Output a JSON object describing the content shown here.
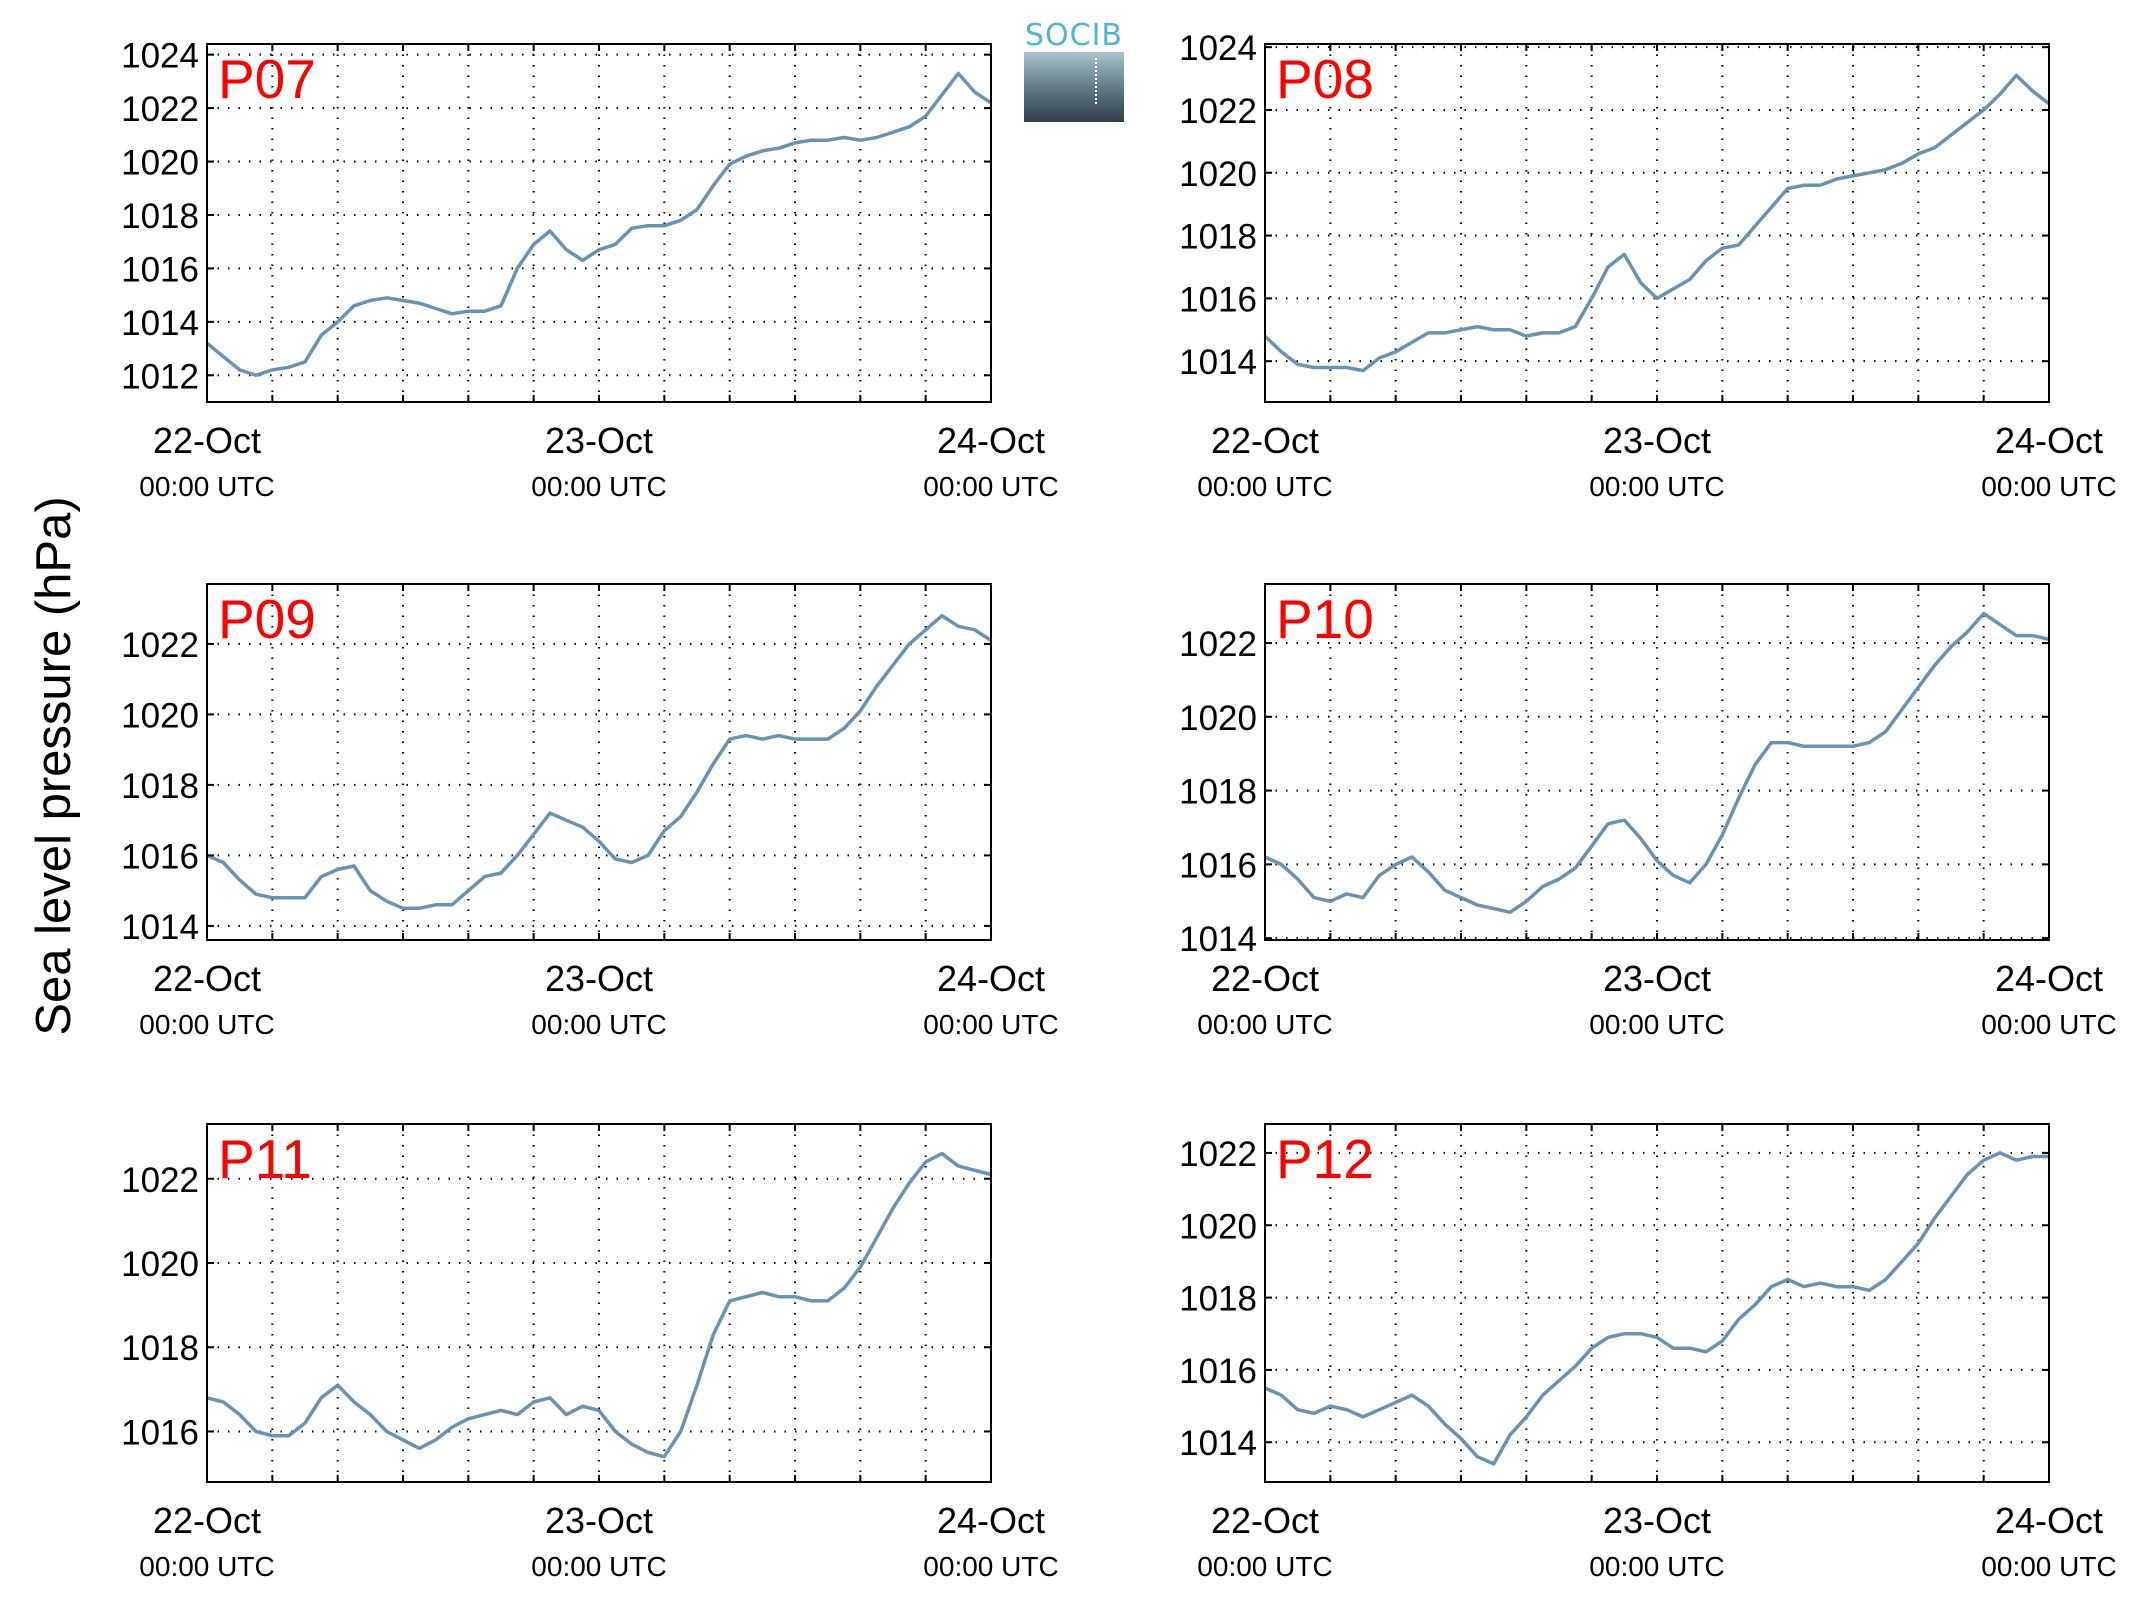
{
  "figure": {
    "ylabel": "Sea level pressure (hPa)",
    "logo_text": "SOCIB",
    "line_color": "#6893b5",
    "label_color": "#ff0000"
  },
  "chart_data": [
    {
      "type": "line",
      "title": "P07",
      "x_tick_labels": [
        [
          "22-Oct",
          "00:00 UTC"
        ],
        [
          "23-Oct",
          "00:00 UTC"
        ],
        [
          "24-Oct",
          "00:00 UTC"
        ]
      ],
      "xlim": [
        0,
        48
      ],
      "ylim": [
        1011,
        1024.4
      ],
      "yticks": [
        1012,
        1014,
        1016,
        1018,
        1020,
        1022,
        1024
      ],
      "grid": true,
      "series": [
        {
          "x": [
            0,
            1,
            2,
            3,
            4,
            5,
            6,
            7,
            8,
            9,
            10,
            11,
            12,
            13,
            14,
            15,
            16,
            17,
            18,
            19,
            20,
            21,
            22,
            23,
            24,
            25,
            26,
            27,
            28,
            29,
            30,
            31,
            32,
            33,
            34,
            35,
            36,
            37,
            38,
            39,
            40,
            41,
            42,
            43,
            44,
            45,
            46,
            47,
            48
          ],
          "y": [
            1013.2,
            1012.7,
            1012.2,
            1012.0,
            1012.2,
            1012.3,
            1012.5,
            1013.5,
            1014.0,
            1014.6,
            1014.8,
            1014.9,
            1014.8,
            1014.7,
            1014.5,
            1014.3,
            1014.4,
            1014.4,
            1014.6,
            1016.0,
            1016.9,
            1017.4,
            1016.7,
            1016.3,
            1016.7,
            1016.9,
            1017.5,
            1017.6,
            1017.6,
            1017.8,
            1018.2,
            1019.1,
            1019.9,
            1020.2,
            1020.4,
            1020.5,
            1020.7,
            1020.8,
            1020.8,
            1020.9,
            1020.8,
            1020.9,
            1021.1,
            1021.3,
            1021.7,
            1022.5,
            1023.3,
            1022.6,
            1022.2
          ]
        }
      ]
    },
    {
      "type": "line",
      "title": "P08",
      "x_tick_labels": [
        [
          "22-Oct",
          "00:00 UTC"
        ],
        [
          "23-Oct",
          "00:00 UTC"
        ],
        [
          "24-Oct",
          "00:00 UTC"
        ]
      ],
      "xlim": [
        0,
        48
      ],
      "ylim": [
        1012.7,
        1024.1
      ],
      "yticks": [
        1014,
        1016,
        1018,
        1020,
        1022,
        1024
      ],
      "grid": true,
      "series": [
        {
          "x": [
            0,
            1,
            2,
            3,
            4,
            5,
            6,
            7,
            8,
            9,
            10,
            11,
            12,
            13,
            14,
            15,
            16,
            17,
            18,
            19,
            20,
            21,
            22,
            23,
            24,
            25,
            26,
            27,
            28,
            29,
            30,
            31,
            32,
            33,
            34,
            35,
            36,
            37,
            38,
            39,
            40,
            41,
            42,
            43,
            44,
            45,
            46,
            47,
            48
          ],
          "y": [
            1014.8,
            1014.3,
            1013.9,
            1013.8,
            1013.8,
            1013.8,
            1013.7,
            1014.1,
            1014.3,
            1014.6,
            1014.9,
            1014.9,
            1015.0,
            1015.1,
            1015.0,
            1015.0,
            1014.8,
            1014.9,
            1014.9,
            1015.1,
            1016.0,
            1017.0,
            1017.4,
            1016.5,
            1016.0,
            1016.3,
            1016.6,
            1017.2,
            1017.6,
            1017.7,
            1018.3,
            1018.9,
            1019.5,
            1019.6,
            1019.6,
            1019.8,
            1019.9,
            1020.0,
            1020.1,
            1020.3,
            1020.6,
            1020.8,
            1021.2,
            1021.6,
            1022.0,
            1022.5,
            1023.1,
            1022.6,
            1022.2
          ]
        }
      ]
    },
    {
      "type": "line",
      "title": "P09",
      "x_tick_labels": [
        [
          "22-Oct",
          "00:00 UTC"
        ],
        [
          "23-Oct",
          "00:00 UTC"
        ],
        [
          "24-Oct",
          "00:00 UTC"
        ]
      ],
      "xlim": [
        0,
        48
      ],
      "ylim": [
        1013.6,
        1023.7
      ],
      "yticks": [
        1014,
        1016,
        1018,
        1020,
        1022
      ],
      "grid": true,
      "series": [
        {
          "x": [
            0,
            1,
            2,
            3,
            4,
            5,
            6,
            7,
            8,
            9,
            10,
            11,
            12,
            13,
            14,
            15,
            16,
            17,
            18,
            19,
            20,
            21,
            22,
            23,
            24,
            25,
            26,
            27,
            28,
            29,
            30,
            31,
            32,
            33,
            34,
            35,
            36,
            37,
            38,
            39,
            40,
            41,
            42,
            43,
            44,
            45,
            46,
            47,
            48
          ],
          "y": [
            1016.0,
            1015.8,
            1015.3,
            1014.9,
            1014.8,
            1014.8,
            1014.8,
            1015.4,
            1015.6,
            1015.7,
            1015.0,
            1014.7,
            1014.5,
            1014.5,
            1014.6,
            1014.6,
            1015.0,
            1015.4,
            1015.5,
            1016.0,
            1016.6,
            1017.2,
            1017.0,
            1016.8,
            1016.4,
            1015.9,
            1015.8,
            1016.0,
            1016.7,
            1017.1,
            1017.8,
            1018.6,
            1019.3,
            1019.4,
            1019.3,
            1019.4,
            1019.3,
            1019.3,
            1019.3,
            1019.6,
            1020.1,
            1020.8,
            1021.4,
            1022.0,
            1022.4,
            1022.8,
            1022.5,
            1022.4,
            1022.1
          ]
        }
      ]
    },
    {
      "type": "line",
      "title": "P10",
      "x_tick_labels": [
        [
          "22-Oct",
          "00:00 UTC"
        ],
        [
          "23-Oct",
          "00:00 UTC"
        ],
        [
          "24-Oct",
          "00:00 UTC"
        ]
      ],
      "xlim": [
        0,
        48
      ],
      "ylim": [
        1013.95,
        1023.6
      ],
      "yticks": [
        1014,
        1016,
        1018,
        1020,
        1022
      ],
      "grid": true,
      "series": [
        {
          "x": [
            0,
            1,
            2,
            3,
            4,
            5,
            6,
            7,
            8,
            9,
            10,
            11,
            12,
            13,
            14,
            15,
            16,
            17,
            18,
            19,
            20,
            21,
            22,
            23,
            24,
            25,
            26,
            27,
            28,
            29,
            30,
            31,
            32,
            33,
            34,
            35,
            36,
            37,
            38,
            39,
            40,
            41,
            42,
            43,
            44,
            45,
            46,
            47,
            48
          ],
          "y": [
            1016.2,
            1016.0,
            1015.6,
            1015.1,
            1015.0,
            1015.2,
            1015.1,
            1015.7,
            1016.0,
            1016.2,
            1015.8,
            1015.3,
            1015.1,
            1014.9,
            1014.8,
            1014.7,
            1015.0,
            1015.4,
            1015.6,
            1015.9,
            1016.5,
            1017.1,
            1017.2,
            1016.7,
            1016.1,
            1015.7,
            1015.5,
            1016.0,
            1016.8,
            1017.8,
            1018.7,
            1019.3,
            1019.3,
            1019.2,
            1019.2,
            1019.2,
            1019.2,
            1019.3,
            1019.6,
            1020.2,
            1020.8,
            1021.4,
            1021.9,
            1022.3,
            1022.8,
            1022.5,
            1022.2,
            1022.2,
            1022.1
          ]
        }
      ]
    },
    {
      "type": "line",
      "title": "P11",
      "x_tick_labels": [
        [
          "22-Oct",
          "00:00 UTC"
        ],
        [
          "23-Oct",
          "00:00 UTC"
        ],
        [
          "24-Oct",
          "00:00 UTC"
        ]
      ],
      "xlim": [
        0,
        48
      ],
      "ylim": [
        1014.8,
        1023.3
      ],
      "yticks": [
        1016,
        1018,
        1020,
        1022
      ],
      "grid": true,
      "series": [
        {
          "x": [
            0,
            1,
            2,
            3,
            4,
            5,
            6,
            7,
            8,
            9,
            10,
            11,
            12,
            13,
            14,
            15,
            16,
            17,
            18,
            19,
            20,
            21,
            22,
            23,
            24,
            25,
            26,
            27,
            28,
            29,
            30,
            31,
            32,
            33,
            34,
            35,
            36,
            37,
            38,
            39,
            40,
            41,
            42,
            43,
            44,
            45,
            46,
            47,
            48
          ],
          "y": [
            1016.8,
            1016.7,
            1016.4,
            1016.0,
            1015.9,
            1015.9,
            1016.2,
            1016.8,
            1017.1,
            1016.7,
            1016.4,
            1016.0,
            1015.8,
            1015.6,
            1015.8,
            1016.1,
            1016.3,
            1016.4,
            1016.5,
            1016.4,
            1016.7,
            1016.8,
            1016.4,
            1016.6,
            1016.5,
            1016.0,
            1015.7,
            1015.5,
            1015.4,
            1016.0,
            1017.1,
            1018.3,
            1019.1,
            1019.2,
            1019.3,
            1019.2,
            1019.2,
            1019.1,
            1019.1,
            1019.4,
            1019.9,
            1020.6,
            1021.3,
            1021.9,
            1022.4,
            1022.6,
            1022.3,
            1022.2,
            1022.1
          ]
        }
      ]
    },
    {
      "type": "line",
      "title": "P12",
      "x_tick_labels": [
        [
          "22-Oct",
          "00:00 UTC"
        ],
        [
          "23-Oct",
          "00:00 UTC"
        ],
        [
          "24-Oct",
          "00:00 UTC"
        ]
      ],
      "xlim": [
        0,
        48
      ],
      "ylim": [
        1012.9,
        1022.8
      ],
      "yticks": [
        1014,
        1016,
        1018,
        1020,
        1022
      ],
      "grid": true,
      "series": [
        {
          "x": [
            0,
            1,
            2,
            3,
            4,
            5,
            6,
            7,
            8,
            9,
            10,
            11,
            12,
            13,
            14,
            15,
            16,
            17,
            18,
            19,
            20,
            21,
            22,
            23,
            24,
            25,
            26,
            27,
            28,
            29,
            30,
            31,
            32,
            33,
            34,
            35,
            36,
            37,
            38,
            39,
            40,
            41,
            42,
            43,
            44,
            45,
            46,
            47,
            48
          ],
          "y": [
            1015.5,
            1015.3,
            1014.9,
            1014.8,
            1015.0,
            1014.9,
            1014.7,
            1014.9,
            1015.1,
            1015.3,
            1015.0,
            1014.5,
            1014.1,
            1013.6,
            1013.4,
            1014.2,
            1014.7,
            1015.3,
            1015.7,
            1016.1,
            1016.6,
            1016.9,
            1017.0,
            1017.0,
            1016.9,
            1016.6,
            1016.6,
            1016.5,
            1016.8,
            1017.4,
            1017.8,
            1018.3,
            1018.5,
            1018.3,
            1018.4,
            1018.3,
            1018.3,
            1018.2,
            1018.5,
            1019.0,
            1019.5,
            1020.2,
            1020.8,
            1021.4,
            1021.8,
            1022.0,
            1021.8,
            1021.9,
            1021.9
          ]
        }
      ]
    }
  ]
}
